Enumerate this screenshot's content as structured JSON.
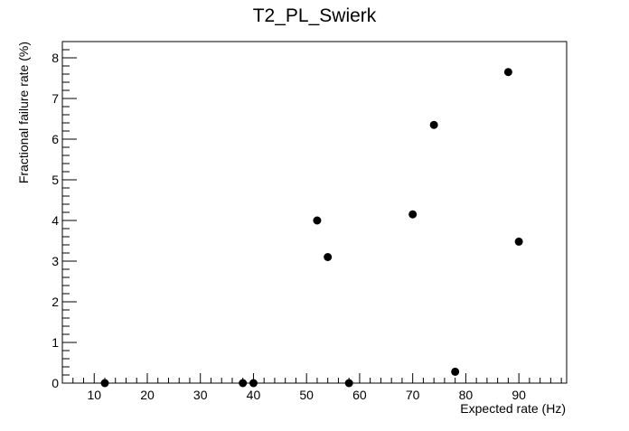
{
  "chart_data": {
    "type": "scatter",
    "title": "T2_PL_Swierk",
    "xlabel": "Expected rate (Hz)",
    "ylabel": "Fractional failure rate (%)",
    "xlim": [
      4,
      99
    ],
    "ylim": [
      0,
      8.4
    ],
    "x_ticks": [
      10,
      20,
      30,
      40,
      50,
      60,
      70,
      80,
      90
    ],
    "y_ticks": [
      0,
      1,
      2,
      3,
      4,
      5,
      6,
      7,
      8
    ],
    "grid": false,
    "legend": "none",
    "marker_color": "#000000",
    "series": [
      {
        "points": [
          {
            "x": 12,
            "y": 0.0
          },
          {
            "x": 38,
            "y": 0.0
          },
          {
            "x": 40,
            "y": 0.0
          },
          {
            "x": 52,
            "y": 4.0
          },
          {
            "x": 54,
            "y": 3.1
          },
          {
            "x": 58,
            "y": 0.0
          },
          {
            "x": 70,
            "y": 4.15
          },
          {
            "x": 74,
            "y": 6.35
          },
          {
            "x": 78,
            "y": 0.28
          },
          {
            "x": 88,
            "y": 7.65
          },
          {
            "x": 90,
            "y": 3.48
          }
        ]
      }
    ]
  }
}
